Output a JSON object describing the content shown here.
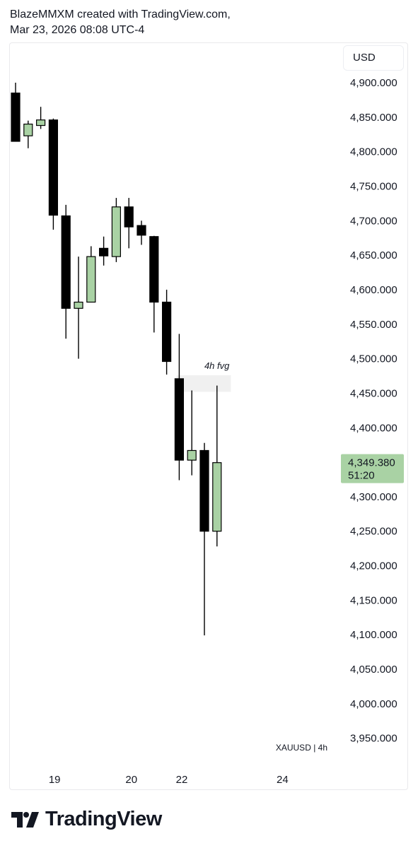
{
  "header": {
    "line1": "BlazeMMXM created with TradingView.com,",
    "line2": "Mar 23, 2026 08:08 UTC-4"
  },
  "currency": "USD",
  "symbol_label": "XAUUSD | 4h",
  "brand": "TradingView",
  "colors": {
    "bull_fill": "#a9d2a4",
    "bear_fill": "#000000",
    "outline": "#000000",
    "price_tag": "#a9d2a4",
    "fvg_zone": "#f0f0f0",
    "axis_text": "#131722"
  },
  "chart_data": {
    "type": "candlestick",
    "y_axis": {
      "ticks": [
        4900,
        4850,
        4800,
        4750,
        4700,
        4650,
        4600,
        4550,
        4500,
        4450,
        4400,
        4350,
        4300,
        4250,
        4200,
        4150,
        4100,
        4050,
        4000,
        3950
      ],
      "tick_labels": [
        "4,900.000",
        "4,850.000",
        "4,800.000",
        "4,750.000",
        "4,700.000",
        "4,650.000",
        "4,600.000",
        "4,550.000",
        "4,500.000",
        "4,450.000",
        "4,400.000",
        "",
        "4,300.000",
        "4,250.000",
        "4,200.000",
        "4,150.000",
        "4,100.000",
        "4,050.000",
        "4,000.000",
        "3,950.000"
      ],
      "position": "right",
      "grid": false
    },
    "x_axis": {
      "tick_labels": [
        "19",
        "20",
        "22",
        "24"
      ],
      "tick_index": [
        3.1,
        9.2,
        13.2,
        21.2
      ]
    },
    "candles": [
      {
        "o": 4885,
        "h": 4900,
        "l": 4815,
        "c": 4815
      },
      {
        "o": 4823,
        "h": 4845,
        "l": 4805,
        "c": 4840
      },
      {
        "o": 4838,
        "h": 4865,
        "l": 4833,
        "c": 4846
      },
      {
        "o": 4846,
        "h": 4848,
        "l": 4687,
        "c": 4708
      },
      {
        "o": 4707,
        "h": 4723,
        "l": 4529,
        "c": 4573
      },
      {
        "o": 4573,
        "h": 4648,
        "l": 4500,
        "c": 4582
      },
      {
        "o": 4582,
        "h": 4663,
        "l": 4582,
        "c": 4648
      },
      {
        "o": 4660,
        "h": 4677,
        "l": 4635,
        "c": 4649
      },
      {
        "o": 4648,
        "h": 4733,
        "l": 4640,
        "c": 4720
      },
      {
        "o": 4720,
        "h": 4733,
        "l": 4660,
        "c": 4691
      },
      {
        "o": 4693,
        "h": 4700,
        "l": 4665,
        "c": 4679
      },
      {
        "o": 4677,
        "h": 4678,
        "l": 4538,
        "c": 4582
      },
      {
        "o": 4582,
        "h": 4600,
        "l": 4477,
        "c": 4496
      },
      {
        "o": 4471,
        "h": 4536,
        "l": 4324,
        "c": 4353
      },
      {
        "o": 4353,
        "h": 4454,
        "l": 4331,
        "c": 4367
      },
      {
        "o": 4367,
        "h": 4378,
        "l": 4099,
        "c": 4250
      },
      {
        "o": 4250,
        "h": 4461,
        "l": 4228,
        "c": 4349.38
      }
    ],
    "annotations": [
      {
        "type": "zone",
        "label": "4h fvg",
        "from_index": 12.8,
        "to_index": 17.1,
        "y_low": 4452,
        "y_high": 4476
      }
    ],
    "last_price": {
      "value": "4,349.380",
      "countdown": "51:20",
      "price": 4349.38
    }
  }
}
